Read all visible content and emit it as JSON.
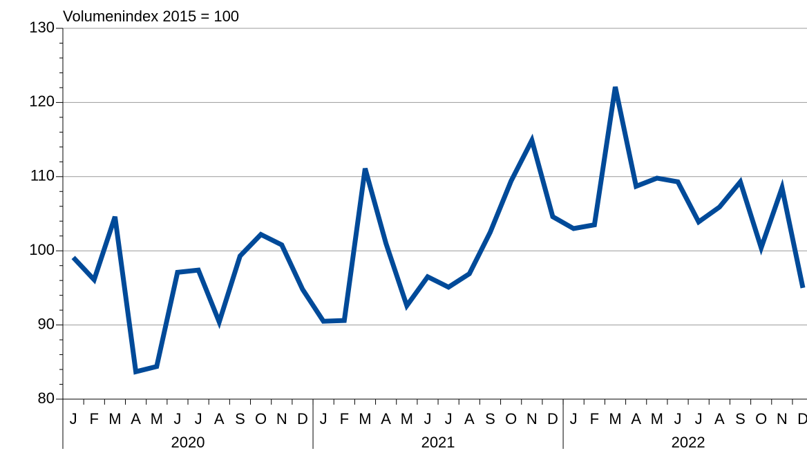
{
  "chart_data": {
    "type": "line",
    "y_label": "Volumenindex 2015 = 100",
    "categories": [
      "J",
      "F",
      "M",
      "A",
      "M",
      "J",
      "J",
      "A",
      "S",
      "O",
      "N",
      "D",
      "J",
      "F",
      "M",
      "A",
      "M",
      "J",
      "J",
      "A",
      "S",
      "O",
      "N",
      "D",
      "J",
      "F",
      "M",
      "A",
      "M",
      "J",
      "J",
      "A",
      "S",
      "O",
      "N",
      "D"
    ],
    "groups": [
      "2020",
      "2021",
      "2022"
    ],
    "series": [
      {
        "color": "#004a99",
        "values": [
          99.1,
          96.1,
          104.6,
          83.7,
          84.4,
          97.1,
          97.4,
          90.4,
          99.3,
          102.2,
          100.8,
          94.8,
          90.5,
          90.6,
          111.1,
          101,
          92.6,
          96.5,
          95.1,
          96.9,
          102.5,
          109.4,
          114.9,
          104.6,
          103,
          103.5,
          122.1,
          108.7,
          109.8,
          109.3,
          103.9,
          105.9,
          109.3,
          100.4,
          108.5,
          95
        ]
      }
    ],
    "ylim": [
      80,
      130
    ],
    "yticks": [
      80,
      90,
      100,
      110,
      120,
      130
    ],
    "yminorticks": [
      82,
      84,
      86,
      88,
      92,
      94,
      96,
      98,
      102,
      104,
      106,
      108,
      112,
      114,
      116,
      118,
      122,
      124,
      126,
      128
    ],
    "grid": true
  }
}
